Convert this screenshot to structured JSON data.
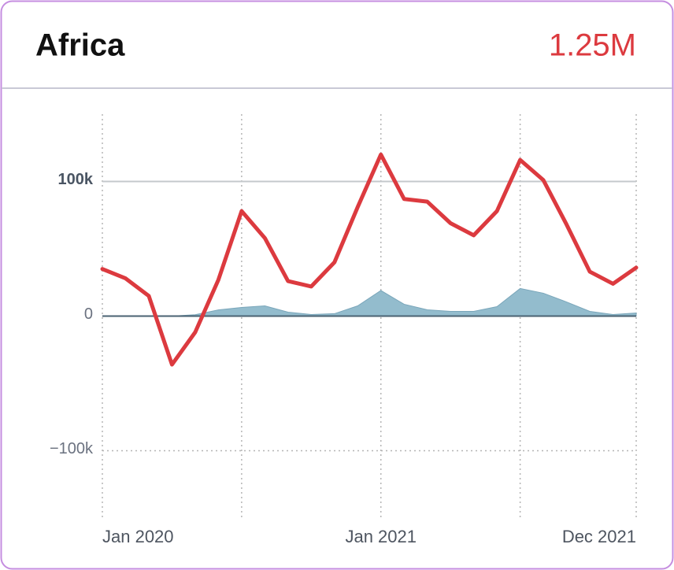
{
  "chart_data": {
    "type": "line",
    "title": "Africa",
    "total": "1.25M",
    "categories": [
      "Jan 2020",
      null,
      null,
      null,
      null,
      null,
      null,
      null,
      null,
      null,
      null,
      null,
      "Jan 2021",
      null,
      null,
      null,
      null,
      null,
      null,
      null,
      null,
      null,
      null,
      "Dec 2021"
    ],
    "xticks": [
      0,
      6,
      12,
      18,
      23
    ],
    "series": [
      {
        "color": "#93bccd",
        "fill": true,
        "values": [
          0,
          0,
          0,
          0,
          1000,
          4600,
          6400,
          7600,
          2900,
          1200,
          1800,
          7600,
          19000,
          8800,
          4700,
          3500,
          3500,
          7000,
          20500,
          17000,
          10500,
          3500,
          1200,
          2300
        ]
      },
      {
        "color": "#dc3a3f",
        "fill": false,
        "values": [
          35000,
          28000,
          15000,
          -36000,
          -12000,
          27000,
          78000,
          58000,
          26000,
          22000,
          40000,
          81000,
          120000,
          87000,
          85000,
          69000,
          60000,
          78000,
          116000,
          101000,
          68000,
          33000,
          24000,
          36000
        ]
      }
    ],
    "ylim": [
      -150000,
      150000
    ],
    "yticks": [
      {
        "value": 100000,
        "label": "100k"
      },
      0,
      {
        "value": -100000,
        "label": "−100k"
      }
    ]
  }
}
